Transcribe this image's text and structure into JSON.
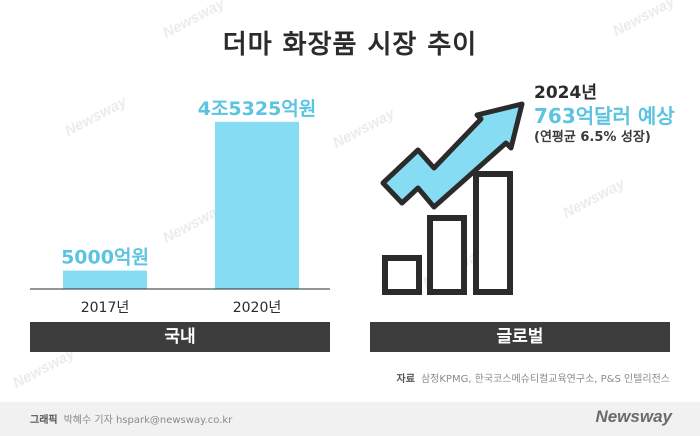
{
  "title": "더마 화장품 시장 추이",
  "chart_data": [
    {
      "type": "bar",
      "panel": "국내",
      "categories": [
        "2017년",
        "2020년"
      ],
      "values": [
        5000,
        45325
      ],
      "value_labels": [
        "5000억원",
        "4조5325억원"
      ],
      "unit": "억원",
      "ylim": [
        0,
        48000
      ],
      "bar_color": "#86dcf3"
    },
    {
      "type": "bar",
      "panel": "글로벌",
      "forecast_year": "2024년",
      "forecast_value": 763,
      "forecast_label": "763억달러 예상",
      "growth_label": "(연평균 6.5% 성장)",
      "icon": "rising-bar-chart-with-arrow",
      "accent_color": "#86dcf3",
      "outline_color": "#2b2b2b"
    }
  ],
  "source": {
    "label": "자료",
    "text": "삼정KPMG, 한국코스메슈티컬교육연구소, P&S 인텔리전스"
  },
  "credit": {
    "label": "그래픽",
    "text": "박혜수 기자 hspark@newsway.co.kr"
  },
  "logo": "Newsway"
}
